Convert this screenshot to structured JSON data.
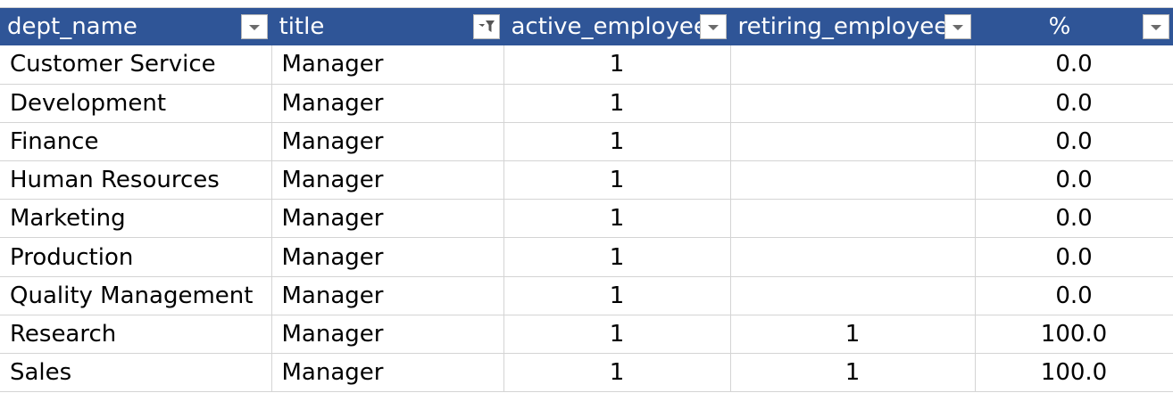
{
  "headers": [
    {
      "label": "dept_name",
      "filter": "dropdown"
    },
    {
      "label": "title",
      "filter": "filtered"
    },
    {
      "label": "active_employees",
      "filter": "dropdown"
    },
    {
      "label": "retiring_employees",
      "filter": "dropdown"
    },
    {
      "label": "%",
      "filter": "dropdown"
    }
  ],
  "rows": [
    {
      "dept_name": "Customer Service",
      "title": "Manager",
      "active": "1",
      "retiring": "",
      "pct": "0.0"
    },
    {
      "dept_name": "Development",
      "title": "Manager",
      "active": "1",
      "retiring": "",
      "pct": "0.0"
    },
    {
      "dept_name": "Finance",
      "title": "Manager",
      "active": "1",
      "retiring": "",
      "pct": "0.0"
    },
    {
      "dept_name": "Human Resources",
      "title": "Manager",
      "active": "1",
      "retiring": "",
      "pct": "0.0"
    },
    {
      "dept_name": "Marketing",
      "title": "Manager",
      "active": "1",
      "retiring": "",
      "pct": "0.0"
    },
    {
      "dept_name": "Production",
      "title": "Manager",
      "active": "1",
      "retiring": "",
      "pct": "0.0"
    },
    {
      "dept_name": "Quality Management",
      "title": "Manager",
      "active": "1",
      "retiring": "",
      "pct": "0.0"
    },
    {
      "dept_name": "Research",
      "title": "Manager",
      "active": "1",
      "retiring": "1",
      "pct": "100.0"
    },
    {
      "dept_name": "Sales",
      "title": "Manager",
      "active": "1",
      "retiring": "1",
      "pct": "100.0"
    }
  ],
  "colors": {
    "header_bg": "#2f5597",
    "header_text": "#ffffff",
    "gridline": "#d4d4d4",
    "cell_text": "#000000"
  },
  "icons": {
    "dropdown": "chevron-down-icon",
    "filtered": "filter-funnel-icon"
  }
}
